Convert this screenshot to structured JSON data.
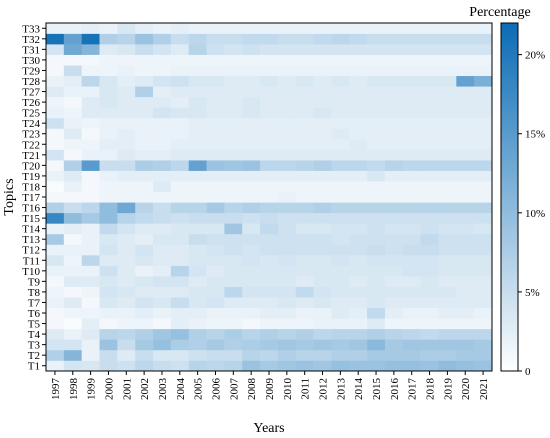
{
  "chart_data": {
    "type": "heatmap",
    "xlabel": "Years",
    "ylabel": "Topics",
    "colorbar_title": "Percentage",
    "colorbar_ticks": [
      "0",
      "5%",
      "10%",
      "15%",
      "20%"
    ],
    "colorbar_range": [
      0,
      22
    ],
    "colormap": {
      "low": "#ffffff",
      "high": "#0b6cb5"
    },
    "x": [
      "1997",
      "1998",
      "1999",
      "2000",
      "2001",
      "2002",
      "2003",
      "2004",
      "2005",
      "2006",
      "2007",
      "2008",
      "2009",
      "2010",
      "2011",
      "2012",
      "2013",
      "2014",
      "2015",
      "2016",
      "2017",
      "2018",
      "2019",
      "2020",
      "2021"
    ],
    "y": [
      "T1",
      "T2",
      "T3",
      "T4",
      "T5",
      "T6",
      "T7",
      "T8",
      "T9",
      "T10",
      "T11",
      "T12",
      "T13",
      "T14",
      "T15",
      "T16",
      "T17",
      "T18",
      "T19",
      "T20",
      "T21",
      "T22",
      "T23",
      "T24",
      "T25",
      "T26",
      "T27",
      "T28",
      "T29",
      "T30",
      "T31",
      "T32",
      "T33"
    ],
    "values": [
      [
        2.0,
        4.0,
        3.5,
        5.0,
        4.5,
        6.0,
        5.0,
        4.5,
        6.5,
        6.0,
        6.5,
        9.0,
        8.0,
        8.5,
        9.0,
        8.5,
        9.5,
        9.0,
        9.0,
        9.5,
        9.5,
        9.0,
        10.0,
        9.5,
        9.0
      ],
      [
        7.0,
        11.0,
        2.0,
        5.0,
        3.0,
        5.0,
        3.5,
        3.5,
        4.5,
        5.0,
        5.0,
        6.5,
        6.0,
        7.0,
        6.5,
        6.5,
        7.0,
        7.0,
        8.0,
        8.0,
        8.0,
        7.5,
        7.5,
        8.0,
        8.0
      ],
      [
        4.0,
        4.0,
        2.0,
        9.0,
        5.0,
        8.0,
        9.5,
        7.5,
        7.0,
        8.0,
        7.0,
        7.5,
        8.0,
        8.5,
        8.0,
        8.5,
        8.0,
        8.5,
        10.5,
        8.0,
        8.5,
        8.5,
        8.5,
        8.5,
        8.0
      ],
      [
        3.0,
        2.0,
        3.0,
        6.5,
        6.0,
        7.0,
        8.5,
        9.5,
        7.0,
        6.5,
        7.5,
        6.5,
        7.0,
        6.5,
        7.0,
        6.0,
        6.5,
        6.5,
        7.0,
        6.5,
        6.0,
        5.5,
        6.0,
        6.0,
        6.0
      ],
      [
        1.0,
        0.5,
        2.5,
        1.0,
        1.5,
        1.5,
        1.0,
        2.5,
        2.0,
        1.5,
        1.5,
        1.0,
        1.5,
        1.5,
        1.5,
        2.0,
        2.0,
        2.0,
        3.0,
        1.5,
        1.5,
        1.5,
        1.5,
        1.5,
        1.5
      ],
      [
        1.0,
        1.5,
        1.5,
        2.0,
        2.0,
        2.5,
        2.0,
        2.5,
        2.5,
        2.0,
        2.0,
        2.0,
        2.5,
        2.5,
        2.0,
        2.0,
        3.0,
        2.5,
        5.5,
        2.5,
        2.0,
        2.0,
        2.5,
        2.5,
        2.0
      ],
      [
        2.0,
        3.0,
        1.0,
        3.5,
        3.0,
        4.0,
        3.5,
        5.0,
        3.5,
        4.0,
        3.0,
        3.0,
        3.0,
        3.5,
        3.0,
        3.5,
        3.0,
        3.0,
        3.5,
        3.0,
        3.0,
        3.0,
        3.0,
        3.0,
        3.0
      ],
      [
        1.5,
        1.0,
        1.5,
        4.0,
        3.5,
        3.0,
        3.0,
        3.0,
        3.5,
        3.5,
        6.0,
        4.0,
        4.0,
        4.0,
        5.5,
        4.0,
        3.5,
        3.5,
        3.5,
        3.5,
        3.5,
        3.5,
        3.5,
        3.0,
        3.0
      ],
      [
        1.0,
        3.0,
        3.0,
        3.5,
        3.0,
        3.5,
        4.0,
        4.0,
        3.0,
        3.5,
        3.5,
        3.5,
        3.5,
        3.5,
        3.0,
        3.5,
        3.5,
        3.0,
        3.5,
        3.0,
        3.0,
        3.5,
        3.0,
        3.0,
        3.0
      ],
      [
        2.0,
        2.0,
        2.0,
        4.5,
        3.0,
        2.0,
        2.5,
        6.5,
        4.0,
        3.0,
        3.5,
        3.5,
        3.5,
        3.5,
        3.5,
        3.5,
        3.5,
        3.5,
        3.5,
        3.5,
        4.0,
        4.0,
        3.5,
        3.5,
        3.5
      ],
      [
        3.5,
        1.5,
        6.0,
        3.0,
        3.0,
        3.5,
        3.0,
        3.0,
        3.5,
        3.5,
        3.5,
        4.0,
        3.5,
        4.0,
        3.5,
        3.5,
        4.0,
        3.5,
        4.0,
        4.0,
        4.0,
        4.0,
        3.5,
        3.5,
        3.5
      ],
      [
        2.0,
        2.0,
        2.0,
        4.0,
        3.0,
        4.0,
        3.0,
        3.0,
        3.5,
        4.0,
        4.5,
        4.0,
        4.5,
        4.5,
        4.5,
        4.5,
        4.5,
        4.5,
        5.0,
        4.5,
        5.0,
        5.0,
        4.5,
        4.5,
        4.5
      ],
      [
        8.0,
        1.0,
        2.0,
        3.5,
        3.0,
        2.5,
        3.5,
        3.5,
        5.0,
        4.5,
        4.5,
        4.5,
        4.5,
        4.5,
        4.5,
        4.5,
        4.0,
        4.5,
        4.5,
        4.5,
        4.5,
        5.5,
        4.5,
        4.5,
        4.5
      ],
      [
        2.0,
        2.5,
        2.0,
        5.5,
        4.0,
        3.0,
        3.0,
        3.5,
        3.5,
        3.5,
        8.5,
        3.5,
        5.5,
        4.5,
        3.5,
        3.5,
        4.0,
        4.0,
        4.5,
        4.0,
        4.0,
        4.5,
        4.0,
        4.0,
        3.5
      ],
      [
        18.0,
        10.0,
        8.0,
        10.0,
        6.5,
        5.5,
        5.0,
        4.5,
        5.0,
        5.0,
        5.0,
        4.5,
        5.0,
        4.5,
        4.5,
        4.5,
        4.5,
        4.5,
        4.5,
        4.5,
        4.5,
        4.5,
        4.5,
        4.5,
        4.5
      ],
      [
        7.0,
        5.0,
        6.0,
        10.0,
        13.0,
        6.5,
        5.0,
        6.5,
        6.5,
        8.0,
        6.5,
        7.0,
        6.5,
        6.5,
        6.5,
        7.0,
        6.5,
        6.5,
        6.5,
        6.5,
        6.5,
        6.5,
        6.5,
        6.5,
        6.5
      ],
      [
        1.0,
        1.0,
        1.0,
        1.5,
        1.5,
        1.5,
        1.5,
        1.5,
        1.5,
        1.5,
        1.5,
        1.5,
        1.5,
        2.0,
        1.5,
        1.5,
        1.5,
        1.5,
        1.5,
        1.5,
        1.5,
        1.5,
        1.5,
        1.5,
        1.5
      ],
      [
        0.5,
        2.0,
        1.0,
        1.5,
        1.5,
        1.5,
        3.0,
        1.5,
        1.5,
        1.5,
        1.5,
        1.5,
        1.5,
        1.5,
        1.5,
        1.5,
        1.5,
        1.5,
        1.5,
        1.5,
        1.5,
        1.5,
        1.5,
        1.5,
        1.5
      ],
      [
        2.0,
        3.0,
        1.0,
        2.0,
        2.5,
        2.5,
        2.5,
        2.5,
        2.5,
        2.5,
        2.5,
        2.5,
        2.5,
        2.5,
        2.5,
        2.5,
        2.5,
        2.5,
        3.5,
        2.5,
        2.5,
        2.5,
        2.5,
        2.5,
        2.5
      ],
      [
        1.0,
        7.0,
        15.0,
        5.0,
        5.0,
        7.5,
        7.0,
        6.0,
        14.0,
        9.0,
        8.5,
        9.0,
        6.0,
        6.0,
        6.5,
        7.0,
        6.0,
        6.0,
        5.5,
        6.5,
        6.0,
        6.0,
        6.0,
        6.0,
        6.0
      ],
      [
        4.0,
        1.0,
        2.0,
        2.0,
        3.0,
        2.5,
        2.5,
        3.0,
        3.0,
        3.0,
        3.0,
        3.0,
        3.0,
        3.0,
        3.0,
        3.0,
        3.0,
        3.0,
        3.0,
        3.0,
        3.0,
        3.0,
        3.0,
        3.0,
        3.0
      ],
      [
        1.0,
        1.5,
        1.5,
        2.5,
        2.5,
        2.0,
        2.0,
        2.5,
        2.5,
        2.5,
        2.5,
        2.5,
        2.5,
        2.5,
        2.5,
        2.5,
        2.5,
        3.0,
        2.5,
        2.5,
        2.5,
        2.5,
        2.5,
        2.5,
        2.5
      ],
      [
        1.0,
        3.0,
        1.0,
        2.0,
        2.5,
        2.0,
        2.0,
        2.0,
        2.5,
        2.5,
        2.5,
        2.5,
        2.5,
        2.5,
        2.5,
        2.5,
        3.0,
        2.5,
        2.5,
        2.5,
        2.5,
        2.5,
        2.5,
        2.5,
        2.5
      ],
      [
        4.5,
        2.0,
        1.5,
        2.0,
        2.0,
        2.0,
        2.0,
        2.0,
        2.5,
        2.5,
        2.5,
        2.5,
        2.5,
        2.5,
        2.5,
        2.5,
        2.5,
        2.5,
        2.5,
        2.5,
        2.5,
        2.5,
        2.5,
        2.5,
        2.5
      ],
      [
        2.0,
        1.5,
        3.0,
        3.0,
        3.0,
        3.0,
        4.0,
        3.5,
        3.5,
        3.0,
        3.0,
        3.5,
        3.0,
        3.0,
        3.0,
        3.5,
        3.0,
        3.0,
        3.0,
        3.0,
        3.0,
        3.0,
        3.0,
        3.0,
        3.0
      ],
      [
        1.5,
        1.0,
        3.0,
        3.5,
        3.0,
        3.0,
        3.0,
        2.5,
        3.5,
        3.0,
        3.0,
        3.5,
        3.0,
        3.0,
        3.0,
        3.0,
        3.0,
        3.0,
        3.0,
        3.0,
        3.0,
        3.0,
        3.0,
        3.0,
        3.0
      ],
      [
        3.0,
        2.0,
        2.0,
        3.5,
        3.0,
        7.0,
        2.5,
        3.0,
        3.0,
        3.0,
        3.0,
        3.0,
        3.0,
        3.0,
        3.0,
        3.0,
        3.0,
        3.0,
        3.0,
        3.0,
        3.0,
        3.0,
        3.0,
        3.0,
        3.0
      ],
      [
        2.0,
        2.5,
        6.0,
        3.5,
        2.5,
        3.0,
        4.0,
        4.5,
        3.5,
        3.5,
        3.0,
        3.0,
        3.5,
        3.0,
        3.5,
        3.0,
        3.5,
        3.0,
        3.5,
        3.5,
        3.5,
        3.5,
        3.5,
        14.0,
        12.0
      ],
      [
        1.0,
        5.0,
        1.5,
        1.5,
        2.0,
        1.5,
        1.5,
        2.0,
        2.0,
        2.0,
        2.0,
        2.0,
        2.0,
        2.0,
        2.0,
        2.0,
        2.0,
        2.0,
        2.0,
        2.0,
        2.0,
        2.0,
        2.0,
        2.0,
        2.0
      ],
      [
        1.0,
        1.0,
        1.0,
        1.5,
        1.5,
        1.5,
        1.5,
        1.5,
        1.5,
        1.5,
        1.5,
        1.5,
        1.5,
        1.5,
        1.5,
        1.5,
        1.5,
        1.5,
        1.5,
        1.5,
        1.5,
        1.5,
        1.5,
        1.5,
        1.5
      ],
      [
        4.0,
        13.0,
        11.0,
        3.0,
        3.5,
        5.0,
        4.0,
        3.0,
        6.5,
        4.5,
        4.0,
        4.5,
        4.0,
        4.0,
        4.0,
        4.0,
        4.0,
        4.0,
        4.0,
        4.0,
        4.0,
        4.0,
        4.0,
        4.0,
        4.0
      ],
      [
        21.0,
        14.0,
        21.0,
        7.0,
        6.5,
        9.0,
        7.0,
        5.0,
        6.0,
        5.0,
        5.0,
        5.5,
        5.5,
        5.0,
        5.0,
        5.5,
        6.0,
        5.5,
        5.0,
        5.0,
        5.0,
        5.0,
        5.0,
        5.0,
        5.0
      ],
      [
        2.0,
        2.0,
        2.5,
        2.0,
        3.5,
        2.5,
        2.0,
        2.5,
        2.0,
        2.0,
        2.0,
        2.0,
        2.0,
        2.0,
        2.0,
        2.0,
        2.0,
        2.0,
        2.0,
        2.0,
        2.0,
        2.0,
        2.0,
        2.0,
        2.0
      ]
    ]
  }
}
